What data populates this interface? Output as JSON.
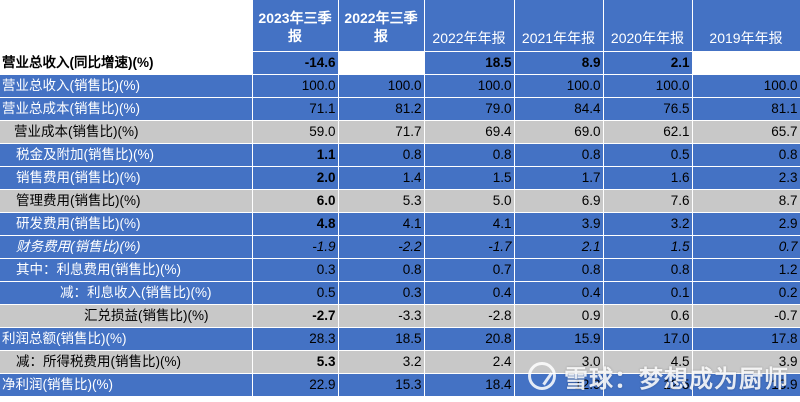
{
  "headers": [
    "2023年三季报",
    "2022年三季报",
    "2022年年报",
    "2021年年报",
    "2020年年报",
    "2019年年报"
  ],
  "rows": [
    {
      "label": "营业总收入(同比增速)(%)",
      "values": [
        "-14.6",
        "",
        "18.5",
        "8.9",
        "2.1",
        ""
      ]
    },
    {
      "label": "营业总收入(销售比)(%)",
      "values": [
        "100.0",
        "100.0",
        "100.0",
        "100.0",
        "100.0",
        "100.0"
      ]
    },
    {
      "label": "营业总成本(销售比)(%)",
      "values": [
        "71.1",
        "81.2",
        "79.0",
        "84.4",
        "76.5",
        "81.1"
      ]
    },
    {
      "label": "营业成本(销售比)(%)",
      "values": [
        "59.0",
        "71.7",
        "69.4",
        "69.0",
        "62.1",
        "65.7"
      ]
    },
    {
      "label": "税金及附加(销售比)(%)",
      "values": [
        "1.1",
        "0.8",
        "0.8",
        "0.8",
        "0.5",
        "0.8"
      ]
    },
    {
      "label": "销售费用(销售比)(%)",
      "values": [
        "2.0",
        "1.4",
        "1.5",
        "1.7",
        "1.6",
        "2.3"
      ]
    },
    {
      "label": "管理费用(销售比)(%)",
      "values": [
        "6.0",
        "5.3",
        "5.0",
        "6.9",
        "7.6",
        "8.7"
      ]
    },
    {
      "label": "研发费用(销售比)(%)",
      "values": [
        "4.8",
        "4.1",
        "4.1",
        "3.9",
        "3.2",
        "2.9"
      ]
    },
    {
      "label": "财务费用(销售比)(%)",
      "values": [
        "-1.9",
        "-2.2",
        "-1.7",
        "2.1",
        "1.5",
        "0.7"
      ]
    },
    {
      "label": "其中：利息费用(销售比)(%)",
      "values": [
        "0.3",
        "0.8",
        "0.7",
        "0.8",
        "0.8",
        "1.2"
      ]
    },
    {
      "label": "减：利息收入(销售比)(%)",
      "values": [
        "0.5",
        "0.3",
        "0.4",
        "0.4",
        "0.1",
        "0.2"
      ]
    },
    {
      "label": "汇兑损益(销售比)(%)",
      "values": [
        "-2.7",
        "-3.3",
        "-2.8",
        "0.9",
        "0.6",
        "-0.7"
      ]
    },
    {
      "label": "利润总额(销售比)(%)",
      "values": [
        "28.3",
        "18.5",
        "20.8",
        "15.9",
        "17.0",
        "17.8"
      ]
    },
    {
      "label": "减：所得税费用(销售比)(%)",
      "values": [
        "5.3",
        "3.2",
        "2.4",
        "3.0",
        "4.5",
        "3.9"
      ]
    },
    {
      "label": "净利润(销售比)(%)",
      "values": [
        "22.9",
        "15.3",
        "18.4",
        "12.9",
        "12.5",
        "13.9"
      ]
    }
  ],
  "watermark": "雪球：梦想成为厨师",
  "watermark_icon": "snowball-logo-icon"
}
